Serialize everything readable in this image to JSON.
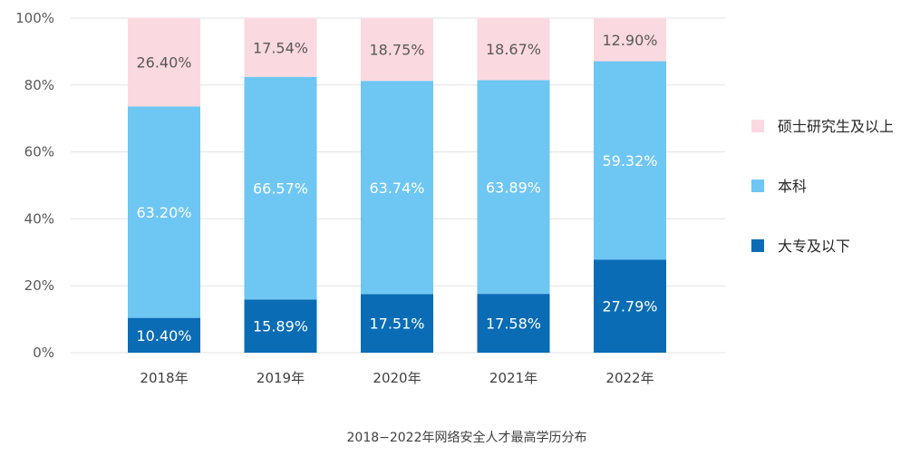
{
  "chart_data": {
    "type": "bar",
    "stacked": true,
    "title": "2018−2022年网络安全人才最高学历分布",
    "categories": [
      "2018年",
      "2019年",
      "2020年",
      "2021年",
      "2022年"
    ],
    "series": [
      {
        "name": "大专及以下",
        "color": "#0a6cb5",
        "values": [
          10.4,
          15.89,
          17.51,
          17.58,
          27.79
        ],
        "labels": [
          "10.40%",
          "15.89%",
          "17.51%",
          "17.58%",
          "27.79%"
        ]
      },
      {
        "name": "本科",
        "color": "#6ec6f2",
        "values": [
          63.2,
          66.57,
          63.74,
          63.89,
          59.32
        ],
        "labels": [
          "63.20%",
          "66.57%",
          "63.74%",
          "63.89%",
          "59.32%"
        ]
      },
      {
        "name": "硕士研究生及以上",
        "color": "#fbd9e0",
        "values": [
          26.4,
          17.54,
          18.75,
          18.67,
          12.9
        ],
        "labels": [
          "26.40%",
          "17.54%",
          "18.75%",
          "18.67%",
          "12.90%"
        ]
      }
    ],
    "ylim": [
      0,
      100
    ],
    "yticks": [
      0,
      20,
      40,
      60,
      80,
      100
    ],
    "ytick_labels": [
      "0%",
      "20%",
      "40%",
      "60%",
      "80%",
      "100%"
    ],
    "legend_order": [
      "硕士研究生及以上",
      "本科",
      "大专及以下"
    ],
    "legend_position": "right",
    "grid": true
  }
}
